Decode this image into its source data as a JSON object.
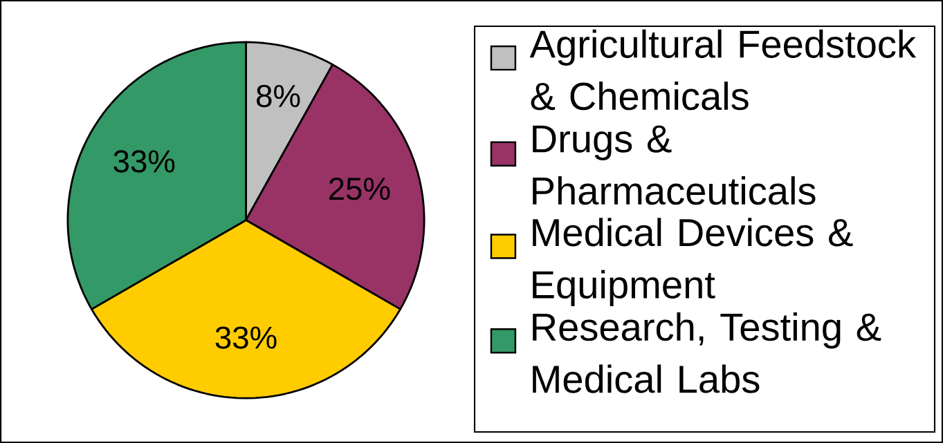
{
  "chart_data": {
    "type": "pie",
    "categories": [
      "Agricultural Feedstock & Chemicals",
      "Drugs & Pharmaceuticals",
      "Medical Devices & Equipment",
      "Research, Testing & Medical Labs"
    ],
    "values": [
      8,
      25,
      33,
      33
    ],
    "colors": [
      "#c0c0c0",
      "#993366",
      "#ffcc00",
      "#339966"
    ],
    "value_labels": [
      "8%",
      "25%",
      "33%",
      "33%"
    ],
    "legend": "right"
  }
}
